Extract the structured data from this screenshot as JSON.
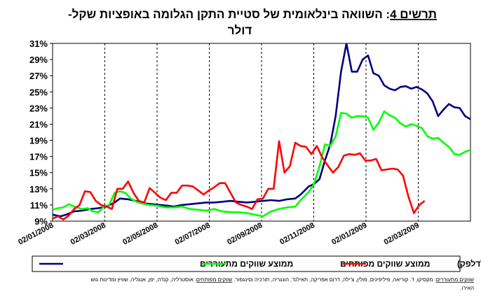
{
  "chart_data": {
    "type": "line",
    "title_label": "תרשים 4",
    "title_line1": "השוואה בינלאומית של סטיית התקן הגלומה באופציות שקל-",
    "title_line2": "דולר",
    "xlabel": "",
    "ylabel": "",
    "ylim": [
      9,
      31
    ],
    "y_ticks": [
      "9%",
      "11%",
      "13%",
      "15%",
      "17%",
      "19%",
      "21%",
      "23%",
      "25%",
      "27%",
      "29%",
      "31%"
    ],
    "x_ticks": [
      "02/01/2008",
      "02/03/2008",
      "02/05/2008",
      "02/07/2008",
      "02/09/2008",
      "02/11/2008",
      "02/01/2009",
      "02/03/2009"
    ],
    "legend_position": "bottom",
    "grid": "vertical dashed",
    "colors": {
      "emerging": "#000080",
      "developed": "#00ff00",
      "israel": "#ff0000"
    },
    "series": [
      {
        "name": "ממוצע שווקים מתעוררים",
        "color": "#000080",
        "points": [
          [
            0,
            9.8
          ],
          [
            3,
            9.6
          ],
          [
            5,
            9.8
          ],
          [
            8,
            10.2
          ],
          [
            11,
            10.3
          ],
          [
            14,
            10.5
          ],
          [
            17,
            10.6
          ],
          [
            20,
            10.8
          ],
          [
            23,
            11.3
          ],
          [
            25,
            11.8
          ],
          [
            28,
            11.7
          ],
          [
            31,
            11.5
          ],
          [
            34,
            11.2
          ],
          [
            37,
            11.1
          ],
          [
            40,
            11
          ],
          [
            43,
            10.9
          ],
          [
            45,
            10.8
          ],
          [
            48,
            11
          ],
          [
            51,
            11.1
          ],
          [
            54,
            11.2
          ],
          [
            57,
            11.3
          ],
          [
            60,
            11.3
          ],
          [
            63,
            11.4
          ],
          [
            66,
            11.5
          ],
          [
            69,
            11.4
          ],
          [
            72,
            11.3
          ],
          [
            75,
            11.4
          ],
          [
            78,
            11.5
          ],
          [
            81,
            11.6
          ],
          [
            84,
            11.5
          ],
          [
            87,
            11.7
          ],
          [
            90,
            11.8
          ],
          [
            92,
            12.3
          ],
          [
            95,
            13.3
          ],
          [
            97,
            13.6
          ],
          [
            99,
            14.2
          ],
          [
            101,
            16.5
          ],
          [
            103,
            18.5
          ],
          [
            105,
            22
          ],
          [
            107,
            27.5
          ],
          [
            109,
            31
          ],
          [
            111,
            27.5
          ],
          [
            113,
            27.5
          ],
          [
            115,
            29
          ],
          [
            117,
            29.5
          ],
          [
            119,
            27.3
          ],
          [
            121,
            27
          ],
          [
            123,
            25.8
          ],
          [
            125,
            25.4
          ],
          [
            127,
            25.2
          ],
          [
            129,
            25.6
          ],
          [
            131,
            25.7
          ],
          [
            133,
            25.4
          ],
          [
            135,
            25.6
          ],
          [
            137,
            25.3
          ],
          [
            139,
            24.8
          ],
          [
            141,
            23.8
          ],
          [
            143,
            22
          ],
          [
            145,
            22.8
          ],
          [
            147,
            23.5
          ],
          [
            149,
            23.1
          ],
          [
            151,
            23
          ],
          [
            153,
            22
          ],
          [
            155,
            21.6
          ]
        ]
      },
      {
        "name": "ממוצע שווקים מפותחים",
        "color": "#00ff00",
        "points": [
          [
            0,
            10.4
          ],
          [
            2,
            10.6
          ],
          [
            4,
            10.7
          ],
          [
            6,
            11.1
          ],
          [
            8,
            10.8
          ],
          [
            11,
            10.5
          ],
          [
            13,
            10.6
          ],
          [
            15,
            10.2
          ],
          [
            17,
            10.1
          ],
          [
            19,
            10.8
          ],
          [
            21,
            11
          ],
          [
            23,
            12.5
          ],
          [
            25,
            12.7
          ],
          [
            27,
            12.5
          ],
          [
            29,
            11.8
          ],
          [
            31,
            11.4
          ],
          [
            33,
            11.2
          ],
          [
            36,
            11
          ],
          [
            39,
            10.9
          ],
          [
            42,
            10.7
          ],
          [
            45,
            10.7
          ],
          [
            48,
            10.8
          ],
          [
            51,
            10.5
          ],
          [
            54,
            10.4
          ],
          [
            57,
            10.3
          ],
          [
            60,
            10.5
          ],
          [
            63,
            10.2
          ],
          [
            66,
            10.1
          ],
          [
            69,
            10.1
          ],
          [
            72,
            10
          ],
          [
            75,
            9.8
          ],
          [
            78,
            9.6
          ],
          [
            81,
            10.2
          ],
          [
            84,
            10.5
          ],
          [
            87,
            10.7
          ],
          [
            90,
            10.8
          ],
          [
            92,
            11.6
          ],
          [
            95,
            12.6
          ],
          [
            97,
            13.6
          ],
          [
            99,
            15.8
          ],
          [
            101,
            18.5
          ],
          [
            103,
            18.3
          ],
          [
            105,
            19.5
          ],
          [
            107,
            22.4
          ],
          [
            109,
            22.3
          ],
          [
            111,
            21.8
          ],
          [
            113,
            22
          ],
          [
            115,
            22
          ],
          [
            117,
            21.8
          ],
          [
            119,
            20.3
          ],
          [
            121,
            21.2
          ],
          [
            123,
            22.6
          ],
          [
            125,
            22.1
          ],
          [
            127,
            21.8
          ],
          [
            129,
            21.1
          ],
          [
            131,
            20.7
          ],
          [
            133,
            21
          ],
          [
            135,
            20.8
          ],
          [
            137,
            20.5
          ],
          [
            139,
            19.5
          ],
          [
            141,
            19.2
          ],
          [
            143,
            19.3
          ],
          [
            145,
            18.7
          ],
          [
            147,
            18.2
          ],
          [
            149,
            17.3
          ],
          [
            151,
            17.2
          ],
          [
            153,
            17.6
          ],
          [
            155,
            17.8
          ]
        ]
      },
      {
        "name": "ישראל (אופציות מעבר לדלפק)",
        "color": "#ff0000",
        "points": [
          [
            0,
            9.3
          ],
          [
            2,
            9.6
          ],
          [
            4,
            9.2
          ],
          [
            6,
            9.7
          ],
          [
            8,
            10.5
          ],
          [
            10,
            11
          ],
          [
            12,
            12.7
          ],
          [
            14,
            12.6
          ],
          [
            16,
            11.5
          ],
          [
            18,
            11
          ],
          [
            20,
            10.8
          ],
          [
            22,
            10.5
          ],
          [
            24,
            13
          ],
          [
            26,
            13
          ],
          [
            28,
            13.9
          ],
          [
            30,
            12.5
          ],
          [
            32,
            11.5
          ],
          [
            34,
            11.3
          ],
          [
            36,
            13.1
          ],
          [
            38,
            12.5
          ],
          [
            40,
            11.9
          ],
          [
            42,
            11.6
          ],
          [
            44,
            12.5
          ],
          [
            46,
            12.5
          ],
          [
            48,
            13.4
          ],
          [
            50,
            13.4
          ],
          [
            52,
            13.3
          ],
          [
            54,
            12.8
          ],
          [
            56,
            12.3
          ],
          [
            58,
            12.8
          ],
          [
            60,
            13.2
          ],
          [
            62,
            13.7
          ],
          [
            64,
            13.7
          ],
          [
            66,
            12.5
          ],
          [
            68,
            11.3
          ],
          [
            70,
            11
          ],
          [
            72,
            10.8
          ],
          [
            74,
            10.5
          ],
          [
            76,
            11.7
          ],
          [
            78,
            11.8
          ],
          [
            80,
            13
          ],
          [
            82,
            13
          ],
          [
            84,
            18.9
          ],
          [
            86,
            15
          ],
          [
            88,
            15.8
          ],
          [
            90,
            18.7
          ],
          [
            92,
            18.3
          ],
          [
            94,
            18.2
          ],
          [
            96,
            17.3
          ],
          [
            98,
            18.3
          ],
          [
            100,
            16.9
          ],
          [
            102,
            15.9
          ],
          [
            104,
            15
          ],
          [
            106,
            15.7
          ],
          [
            108,
            17.1
          ],
          [
            110,
            17.3
          ],
          [
            112,
            17.2
          ],
          [
            114,
            17.4
          ],
          [
            116,
            16.5
          ],
          [
            118,
            16.5
          ],
          [
            120,
            16.7
          ],
          [
            122,
            15.3
          ],
          [
            124,
            15.4
          ],
          [
            126,
            15.5
          ],
          [
            128,
            15.4
          ],
          [
            130,
            14.6
          ],
          [
            132,
            12
          ],
          [
            134,
            10
          ],
          [
            136,
            11
          ],
          [
            138,
            11.5
          ]
        ]
      }
    ]
  },
  "footnote": {
    "line1_lead": "שווקים מתעוררים",
    "line1_mid": ": מקסיקו, ד. קוריאה, פיליפינים, פולין, צ'ילה, דרום אפריקה, תאילנד, הונגריה, תורכיה וסינגפור. ",
    "line1_dev": "שווקים מפותחים",
    "line1_tail": ": אוסטרליה, קנדה, יפן, אנגליה, שוויץ ומדינות גוש",
    "line2": "האירו."
  }
}
